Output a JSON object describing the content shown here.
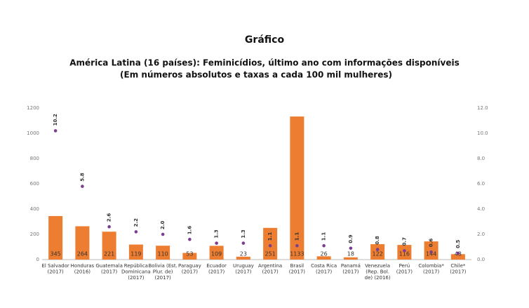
{
  "chart_data": {
    "type": "bar_dot",
    "title": "Gráfico",
    "subtitle": [
      "América Latina (16 países): Feminicídios, último ano com informações disponíveis",
      "(Em números absolutos e taxas a cada 100 mil mulheres)"
    ],
    "categories": [
      [
        "El Salvador",
        "(2017)"
      ],
      [
        "Honduras",
        "(2016)"
      ],
      [
        "Guatemala",
        "(2017)"
      ],
      [
        "República",
        "Dominicana",
        "(2017)"
      ],
      [
        "Bolivia (Est.",
        "Plur. de)",
        "(2017)"
      ],
      [
        "Paraguay",
        "(2017)"
      ],
      [
        "Ecuador",
        "(2017)"
      ],
      [
        "Uruguay",
        "(2017)"
      ],
      [
        "Argentina",
        "(2017)"
      ],
      [
        "Brasil",
        "(2017)"
      ],
      [
        "Costa Rica",
        "(2017)"
      ],
      [
        "Panamá",
        "(2017)"
      ],
      [
        "Venezuela",
        "(Rep. Bol.",
        "de) (2016)"
      ],
      [
        "Perú",
        "(2017)"
      ],
      [
        "Colombia*",
        "(2017)"
      ],
      [
        "Chile*",
        "(2017)"
      ]
    ],
    "series": [
      {
        "color": "#ed7d31",
        "values": [
          345,
          264,
          221,
          119,
          110,
          53,
          109,
          23,
          251,
          1133,
          26,
          18,
          122,
          116,
          144,
          43
        ]
      },
      {
        "color": "#7b3f8f",
        "axis": "y2",
        "values": [
          10.2,
          5.8,
          2.6,
          2.2,
          2.0,
          1.6,
          1.3,
          1.3,
          1.1,
          1.1,
          1.1,
          0.9,
          0.8,
          0.7,
          0.6,
          0.5
        ],
        "value_labels": [
          "10.2",
          "5.8",
          "2.6",
          "2.2",
          "2.0",
          "1.6",
          "1.3",
          "1.3",
          "1.1",
          "1.1",
          "1.1",
          "0.9",
          "0.8",
          "0.7",
          "0.6",
          "0.5"
        ]
      }
    ],
    "ylim": [
      0,
      1200
    ],
    "yticks": [
      0,
      200,
      400,
      600,
      800,
      1000,
      1200
    ],
    "y2lim": [
      0,
      12
    ],
    "y2ticks": [
      {
        "value": 0,
        "label": "0.0"
      },
      {
        "value": 2,
        "label": "2.0"
      },
      {
        "value": 4,
        "label": "4.0"
      },
      {
        "value": 6,
        "label": "6.0"
      },
      {
        "value": 8,
        "label": "8.0"
      },
      {
        "value": 10,
        "label": "10.0"
      },
      {
        "value": 12,
        "label": "12.0"
      }
    ]
  }
}
